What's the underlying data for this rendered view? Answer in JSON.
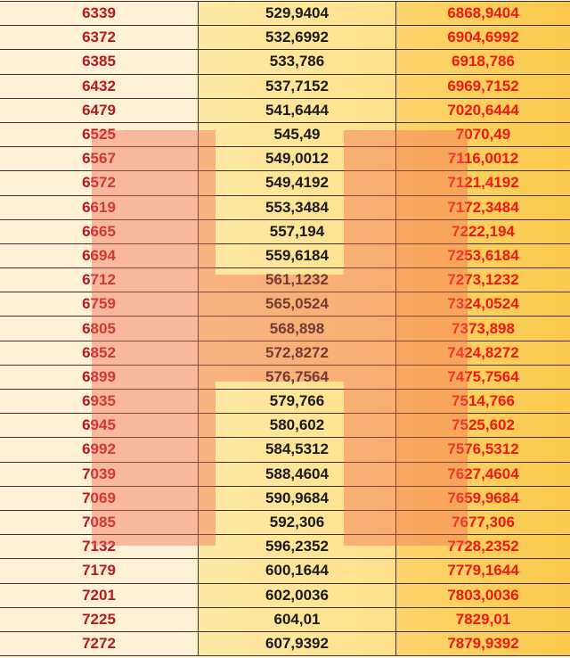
{
  "table": {
    "rows": [
      [
        "6339",
        "529,9404",
        "6868,9404"
      ],
      [
        "6372",
        "532,6992",
        "6904,6992"
      ],
      [
        "6385",
        "533,786",
        "6918,786"
      ],
      [
        "6432",
        "537,7152",
        "6969,7152"
      ],
      [
        "6479",
        "541,6444",
        "7020,6444"
      ],
      [
        "6525",
        "545,49",
        "7070,49"
      ],
      [
        "6567",
        "549,0012",
        "7116,0012"
      ],
      [
        "6572",
        "549,4192",
        "7121,4192"
      ],
      [
        "6619",
        "553,3484",
        "7172,3484"
      ],
      [
        "6665",
        "557,194",
        "7222,194"
      ],
      [
        "6694",
        "559,6184",
        "7253,6184"
      ],
      [
        "6712",
        "561,1232",
        "7273,1232"
      ],
      [
        "6759",
        "565,0524",
        "7324,0524"
      ],
      [
        "6805",
        "568,898",
        "7373,898"
      ],
      [
        "6852",
        "572,8272",
        "7424,8272"
      ],
      [
        "6899",
        "576,7564",
        "7475,7564"
      ],
      [
        "6935",
        "579,766",
        "7514,766"
      ],
      [
        "6945",
        "580,602",
        "7525,602"
      ],
      [
        "6992",
        "584,5312",
        "7576,5312"
      ],
      [
        "7039",
        "588,4604",
        "7627,4604"
      ],
      [
        "7069",
        "590,9684",
        "7659,9684"
      ],
      [
        "7085",
        "592,306",
        "7677,306"
      ],
      [
        "7132",
        "596,2352",
        "7728,2352"
      ],
      [
        "7179",
        "600,1644",
        "7779,1644"
      ],
      [
        "7201",
        "602,0036",
        "7803,0036"
      ],
      [
        "7225",
        "604,01",
        "7829,01"
      ],
      [
        "7272",
        "607,9392",
        "7879,9392"
      ]
    ]
  },
  "colors": {
    "col1_text": "#b81820",
    "col3_text": "#f21616",
    "watermark": "#f06a50"
  }
}
